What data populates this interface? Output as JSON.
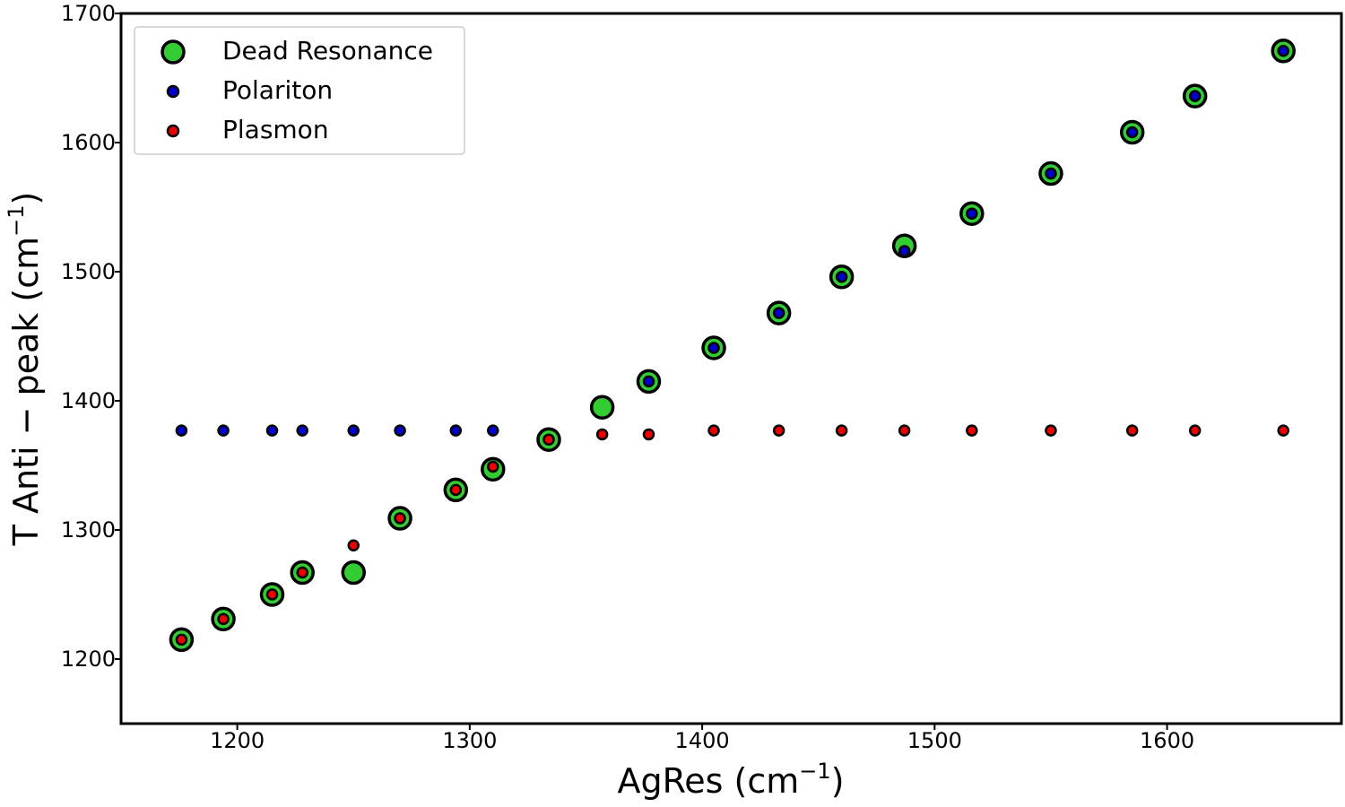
{
  "chart_data": {
    "type": "scatter",
    "title": "",
    "xlabel": "AgRes (cm",
    "xlabel_sup": "−1",
    "xlabel_tail": ")",
    "ylabel": "T Anti − peak (cm",
    "ylabel_sup": "−1",
    "ylabel_tail": ")",
    "xlim": [
      1150,
      1675
    ],
    "ylim": [
      1150,
      1700
    ],
    "xticks": [
      1200,
      1300,
      1400,
      1500,
      1600
    ],
    "yticks": [
      1200,
      1300,
      1400,
      1500,
      1600,
      1700
    ],
    "grid": false,
    "legend_position": "top-left",
    "series": [
      {
        "name": "Dead Resonance",
        "color": "#33cc33",
        "marker": "large-circle",
        "x": [
          1176,
          1194,
          1215,
          1228,
          1250,
          1270,
          1294,
          1310,
          1334,
          1357,
          1377,
          1405,
          1433,
          1460,
          1487,
          1516,
          1550,
          1585,
          1612,
          1650
        ],
        "y": [
          1215,
          1231,
          1250,
          1267,
          1267,
          1309,
          1331,
          1347,
          1370,
          1395,
          1415,
          1441,
          1468,
          1496,
          1520,
          1545,
          1576,
          1608,
          1636,
          1671
        ]
      },
      {
        "name": "Polariton",
        "color": "#0000cc",
        "marker": "small-circle",
        "x": [
          1176,
          1194,
          1215,
          1228,
          1250,
          1270,
          1294,
          1310,
          1377,
          1405,
          1433,
          1460,
          1487,
          1516,
          1550,
          1585,
          1612,
          1650
        ],
        "y": [
          1377,
          1377,
          1377,
          1377,
          1377,
          1377,
          1377,
          1377,
          1415,
          1441,
          1468,
          1496,
          1516,
          1545,
          1576,
          1608,
          1636,
          1671
        ]
      },
      {
        "name": "Plasmon",
        "color": "#ee0000",
        "marker": "small-circle",
        "x": [
          1176,
          1194,
          1215,
          1228,
          1250,
          1270,
          1294,
          1310,
          1334,
          1357,
          1377,
          1405,
          1433,
          1460,
          1487,
          1516,
          1550,
          1585,
          1612,
          1650
        ],
        "y": [
          1215,
          1231,
          1250,
          1267,
          1288,
          1309,
          1331,
          1349,
          1370,
          1374,
          1374,
          1377,
          1377,
          1377,
          1377,
          1377,
          1377,
          1377,
          1377,
          1377
        ]
      }
    ]
  }
}
